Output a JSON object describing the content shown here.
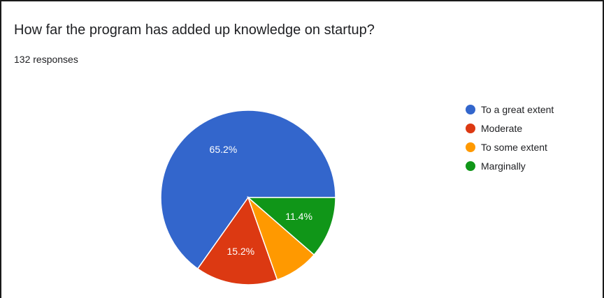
{
  "card": {
    "title": "How far the program has added up knowledge on startup?",
    "response_count": "132 responses"
  },
  "chart_data": {
    "type": "pie",
    "slices": [
      {
        "label": "To a great extent",
        "value": 65.2,
        "value_label": "65.2%",
        "color": "#3366cc"
      },
      {
        "label": "Moderate",
        "value": 15.2,
        "value_label": "15.2%",
        "color": "#dc3912"
      },
      {
        "label": "To some extent",
        "value": 8.2,
        "value_label": "",
        "color": "#ff9900"
      },
      {
        "label": "Marginally",
        "value": 11.4,
        "value_label": "11.4%",
        "color": "#109618"
      }
    ],
    "legend_position": "right"
  }
}
